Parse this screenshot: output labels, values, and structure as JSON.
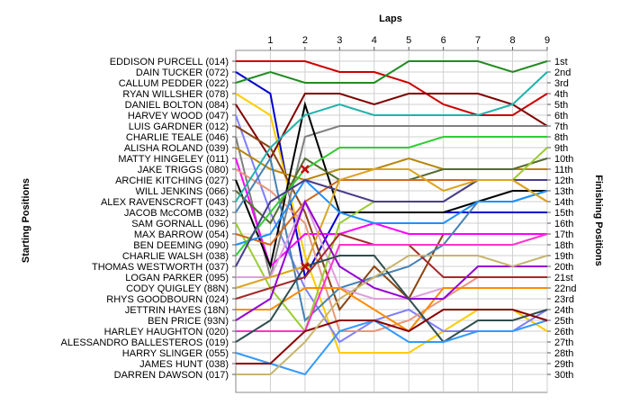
{
  "chart_data": {
    "type": "line",
    "title": "",
    "xlabel": "Laps",
    "ylabel_left": "Starting Positions",
    "ylabel_right": "Finishing Positions",
    "laps": [
      "1",
      "2",
      "3",
      "4",
      "5",
      "6",
      "7",
      "8",
      "9"
    ],
    "x": [
      0,
      1,
      2,
      3,
      4,
      5,
      6,
      7,
      8,
      9
    ],
    "finishing_labels": [
      "1st",
      "2nd",
      "3rd",
      "4th",
      "5th",
      "6th",
      "7th",
      "8th",
      "9th",
      "10th",
      "11th",
      "12th",
      "13th",
      "14th",
      "15th",
      "16th",
      "17th",
      "18th",
      "19th",
      "20th",
      "21st",
      "22nd",
      "23rd",
      "24th",
      "25th",
      "26th",
      "27th",
      "28th",
      "29th",
      "30th"
    ],
    "grid": true,
    "series": [
      {
        "name": "EDDISON PURCELL (014)",
        "color": "#cc0000",
        "values": [
          1,
          1,
          1,
          2,
          2,
          3,
          5,
          6,
          6,
          4
        ]
      },
      {
        "name": "DAIN TUCKER (072)",
        "color": "#0000cc",
        "values": [
          2,
          4,
          21,
          15,
          15,
          15,
          15,
          15,
          15,
          15
        ]
      },
      {
        "name": "CALLUM PEDDER (022)",
        "color": "#228b22",
        "values": [
          3,
          2,
          3,
          3,
          3,
          1,
          1,
          1,
          2,
          1
        ]
      },
      {
        "name": "RYAN WILLSHER (078)",
        "color": "#ffcc00",
        "values": [
          4,
          6,
          19,
          28,
          28,
          28,
          26,
          24,
          24,
          26
        ]
      },
      {
        "name": "DANIEL BOLTON (084)",
        "color": "#800000",
        "values": [
          5,
          10,
          4,
          4,
          5,
          4,
          4,
          4,
          5,
          7
        ]
      },
      {
        "name": "HARVEY WOOD (047)",
        "color": "#7f7fff",
        "values": [
          6,
          15,
          22,
          27,
          25,
          24,
          26,
          26,
          26,
          24
        ]
      },
      {
        "name": "LUIS GARDNER (012)",
        "color": "#8b4513",
        "values": [
          7,
          9,
          15,
          24,
          20,
          23,
          17,
          17,
          17,
          17
        ]
      },
      {
        "name": "CHARLIE TEALE (046)",
        "color": "#808080",
        "values": [
          8,
          21,
          8,
          7,
          7,
          7,
          7,
          7,
          7,
          7
        ]
      },
      {
        "name": "ALISHA ROLAND (039)",
        "color": "#b8860b",
        "values": [
          9,
          11,
          12,
          11,
          11,
          10,
          11,
          11,
          11,
          11
        ]
      },
      {
        "name": "MATTY HINGELEY (011)",
        "color": "#ff00ff",
        "values": [
          10,
          20,
          17,
          17,
          16,
          17,
          17,
          17,
          17,
          17
        ]
      },
      {
        "name": "JAKE TRIGGS (080)",
        "color": "#e9967a",
        "values": [
          11,
          13,
          16,
          26,
          26,
          25,
          23,
          21,
          21,
          21
        ]
      },
      {
        "name": "ARCHIE KITCHING (027)",
        "color": "#000000",
        "values": [
          12,
          20,
          5,
          15,
          15,
          15,
          15,
          14,
          13,
          13
        ]
      },
      {
        "name": "WILL JENKINS (066)",
        "color": "#556b2f",
        "values": [
          13,
          16,
          10,
          12,
          12,
          12,
          11,
          11,
          11,
          10
        ]
      },
      {
        "name": "ALEX RAVENSCROFT (043)",
        "color": "#20b2aa",
        "values": [
          14,
          9,
          6,
          5,
          6,
          6,
          6,
          6,
          5,
          2
        ]
      },
      {
        "name": "JACOB McCOMB (032)",
        "color": "#4682b4",
        "values": [
          15,
          10,
          25,
          22,
          21,
          20,
          18,
          14,
          14,
          13
        ]
      },
      {
        "name": "SAM GORNALL (096)",
        "color": "#9acd32",
        "values": [
          16,
          22,
          26,
          16,
          14,
          14,
          14,
          12,
          12,
          9
        ]
      },
      {
        "name": "MAX BARROW (054)",
        "color": "#d2691e",
        "values": [
          17,
          18,
          14,
          12,
          12,
          12,
          12,
          12,
          12,
          14
        ]
      },
      {
        "name": "BEN DEEMING (090)",
        "color": "#1e90ff",
        "values": [
          18,
          17,
          12,
          15,
          16,
          16,
          16,
          14,
          14,
          13
        ]
      },
      {
        "name": "CHARLIE WALSH (038)",
        "color": "#32cd32",
        "values": [
          19,
          15,
          11,
          9,
          9,
          9,
          8,
          8,
          8,
          8
        ]
      },
      {
        "name": "THOMAS WESTWORTH (037)",
        "color": "#483d8b",
        "values": [
          20,
          14,
          12,
          13,
          14,
          14,
          14,
          12,
          12,
          12
        ]
      },
      {
        "name": "LOGAN PARKER (095)",
        "color": "#dda0dd",
        "values": [
          21,
          21,
          14,
          22,
          23,
          23,
          22,
          22,
          22,
          22
        ]
      },
      {
        "name": "CODY QUIGLEY (88N)",
        "color": "#daa520",
        "values": [
          22,
          21,
          20,
          12,
          11,
          11,
          13,
          12,
          12,
          14
        ]
      },
      {
        "name": "RHYS GOODBOURN (024)",
        "color": "#a52a2a",
        "values": [
          23,
          22,
          21,
          17,
          18,
          18,
          21,
          21,
          21,
          21
        ]
      },
      {
        "name": "JETTRIN HAYES (18N)",
        "color": "#ff8c00",
        "values": [
          24,
          24,
          22,
          22,
          24,
          26,
          22,
          22,
          22,
          22
        ]
      },
      {
        "name": "BEN PRICE (93N)",
        "color": "#9400d3",
        "values": [
          25,
          23,
          14,
          20,
          22,
          23,
          23,
          20,
          20,
          20
        ]
      },
      {
        "name": "HARLEY HAUGHTON (020)",
        "color": "#ff33cc",
        "values": [
          26,
          26,
          26,
          18,
          18,
          18,
          18,
          18,
          18,
          17
        ]
      },
      {
        "name": "ALESSANDRO BALLESTEROS (019)",
        "color": "#2f4f4f",
        "values": [
          27,
          25,
          20,
          19,
          19,
          23,
          27,
          25,
          25,
          24
        ]
      },
      {
        "name": "HARRY SLINGER (055)",
        "color": "#3399ff",
        "values": [
          28,
          29,
          30,
          26,
          25,
          27,
          27,
          26,
          26,
          25
        ]
      },
      {
        "name": "JAMES HUNT (038)",
        "color": "#8b0000",
        "values": [
          29,
          29,
          26,
          25,
          25,
          26,
          24,
          24,
          24,
          25
        ]
      },
      {
        "name": "DARREN DAWSON (017)",
        "color": "#c8b46e",
        "values": [
          30,
          30,
          27,
          23,
          21,
          19,
          19,
          19,
          20,
          19
        ]
      }
    ],
    "retirements": [
      {
        "lap": 2,
        "position": 11
      },
      {
        "lap": 2,
        "position": 20
      }
    ]
  }
}
